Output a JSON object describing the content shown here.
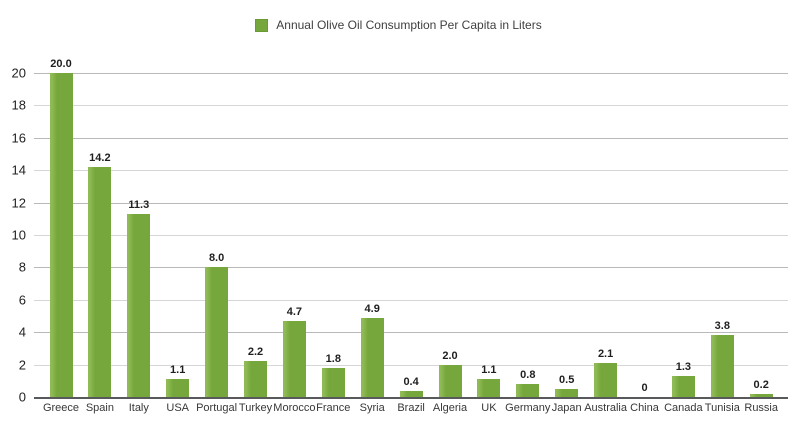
{
  "legend": {
    "swatch_color": "#76A73C"
  },
  "chart_data": {
    "type": "bar",
    "title": "Annual Olive Oil Consumption Per Capita in Liters",
    "legend_label": "Annual Olive Oil Consumption Per Capita in Liters",
    "legend_position": "top-center",
    "categories": [
      "Greece",
      "Spain",
      "Italy",
      "USA",
      "Portugal",
      "Turkey",
      "Morocco",
      "France",
      "Syria",
      "Brazil",
      "Algeria",
      "UK",
      "Germany",
      "Japan",
      "Australia",
      "China",
      "Canada",
      "Tunisia",
      "Russia"
    ],
    "values": [
      20.0,
      14.2,
      11.3,
      1.1,
      8.0,
      2.2,
      4.7,
      1.8,
      4.9,
      0.4,
      2.0,
      1.1,
      0.8,
      0.5,
      2.1,
      0,
      1.3,
      3.8,
      0.2
    ],
    "value_labels": [
      "20.0",
      "14.2",
      "11.3",
      "1.1",
      "8.0",
      "2.2",
      "4.7",
      "1.8",
      "4.9",
      "0.4",
      "2.0",
      "1.1",
      "0.8",
      "0.5",
      "2.1",
      "0",
      "1.3",
      "3.8",
      "0.2"
    ],
    "xlabel": "",
    "ylabel": "",
    "ylim": [
      0,
      20
    ],
    "yticks": [
      0,
      2,
      4,
      6,
      8,
      10,
      12,
      14,
      16,
      18,
      20
    ],
    "grid": true,
    "bar_color": "#76A73C",
    "gridline_color_major": "#B9B9B9",
    "gridline_color_minor": "#D6D6D6",
    "baseline_color": "#58595A"
  }
}
